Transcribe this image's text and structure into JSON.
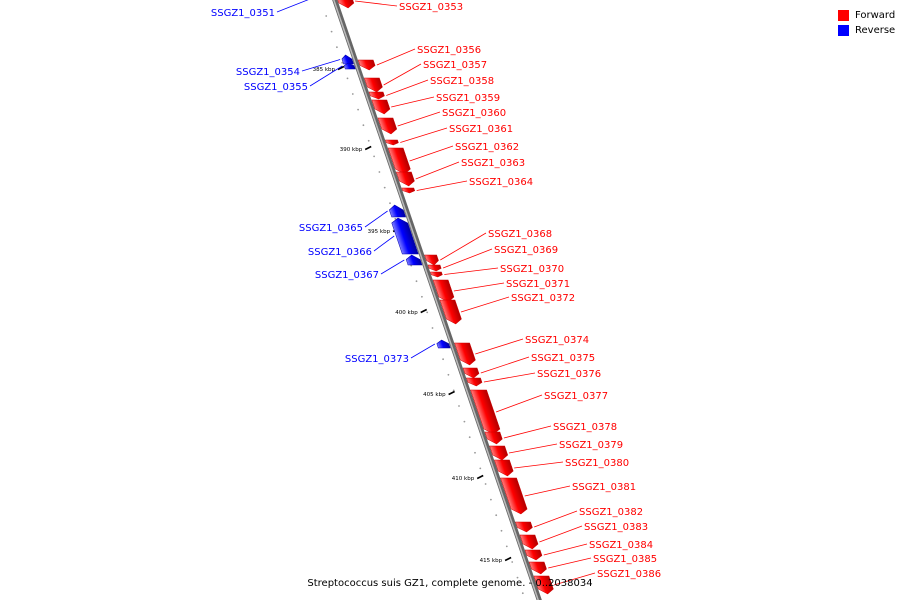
{
  "caption": "Streptococcus suis GZ1, complete genome. - 0..2038034",
  "legend": [
    {
      "label": "Forward",
      "color": "#ff0000"
    },
    {
      "label": "Reverse",
      "color": "#0000ff"
    }
  ],
  "colors": {
    "forward": "#ff0000",
    "reverse": "#0000ff",
    "backbone": "#888888"
  },
  "ticks": [
    {
      "label": "385 kbp"
    },
    {
      "label": "390 kbp"
    },
    {
      "label": "395 kbp"
    },
    {
      "label": "400 kbp"
    },
    {
      "label": "405 kbp"
    },
    {
      "label": "410 kbp"
    },
    {
      "label": "415 kbp"
    }
  ],
  "genes": [
    {
      "name": "SSGZ1_0351",
      "strand": "reverse"
    },
    {
      "name": "SSGZ1_0353",
      "strand": "forward"
    },
    {
      "name": "SSGZ1_0354",
      "strand": "reverse"
    },
    {
      "name": "SSGZ1_0355",
      "strand": "reverse"
    },
    {
      "name": "SSGZ1_0356",
      "strand": "forward"
    },
    {
      "name": "SSGZ1_0357",
      "strand": "forward"
    },
    {
      "name": "SSGZ1_0358",
      "strand": "forward"
    },
    {
      "name": "SSGZ1_0359",
      "strand": "forward"
    },
    {
      "name": "SSGZ1_0360",
      "strand": "forward"
    },
    {
      "name": "SSGZ1_0361",
      "strand": "forward"
    },
    {
      "name": "SSGZ1_0362",
      "strand": "forward"
    },
    {
      "name": "SSGZ1_0363",
      "strand": "forward"
    },
    {
      "name": "SSGZ1_0364",
      "strand": "forward"
    },
    {
      "name": "SSGZ1_0365",
      "strand": "reverse"
    },
    {
      "name": "SSGZ1_0366",
      "strand": "reverse"
    },
    {
      "name": "SSGZ1_0367",
      "strand": "reverse"
    },
    {
      "name": "SSGZ1_0368",
      "strand": "forward"
    },
    {
      "name": "SSGZ1_0369",
      "strand": "forward"
    },
    {
      "name": "SSGZ1_0370",
      "strand": "forward"
    },
    {
      "name": "SSGZ1_0371",
      "strand": "forward"
    },
    {
      "name": "SSGZ1_0372",
      "strand": "forward"
    },
    {
      "name": "SSGZ1_0373",
      "strand": "reverse"
    },
    {
      "name": "SSGZ1_0374",
      "strand": "forward"
    },
    {
      "name": "SSGZ1_0375",
      "strand": "forward"
    },
    {
      "name": "SSGZ1_0376",
      "strand": "forward"
    },
    {
      "name": "SSGZ1_0377",
      "strand": "forward"
    },
    {
      "name": "SSGZ1_0378",
      "strand": "forward"
    },
    {
      "name": "SSGZ1_0379",
      "strand": "forward"
    },
    {
      "name": "SSGZ1_0380",
      "strand": "forward"
    },
    {
      "name": "SSGZ1_0381",
      "strand": "forward"
    },
    {
      "name": "SSGZ1_0382",
      "strand": "forward"
    },
    {
      "name": "SSGZ1_0383",
      "strand": "forward"
    },
    {
      "name": "SSGZ1_0384",
      "strand": "forward"
    },
    {
      "name": "SSGZ1_0385",
      "strand": "forward"
    },
    {
      "name": "SSGZ1_0386",
      "strand": "forward"
    }
  ]
}
